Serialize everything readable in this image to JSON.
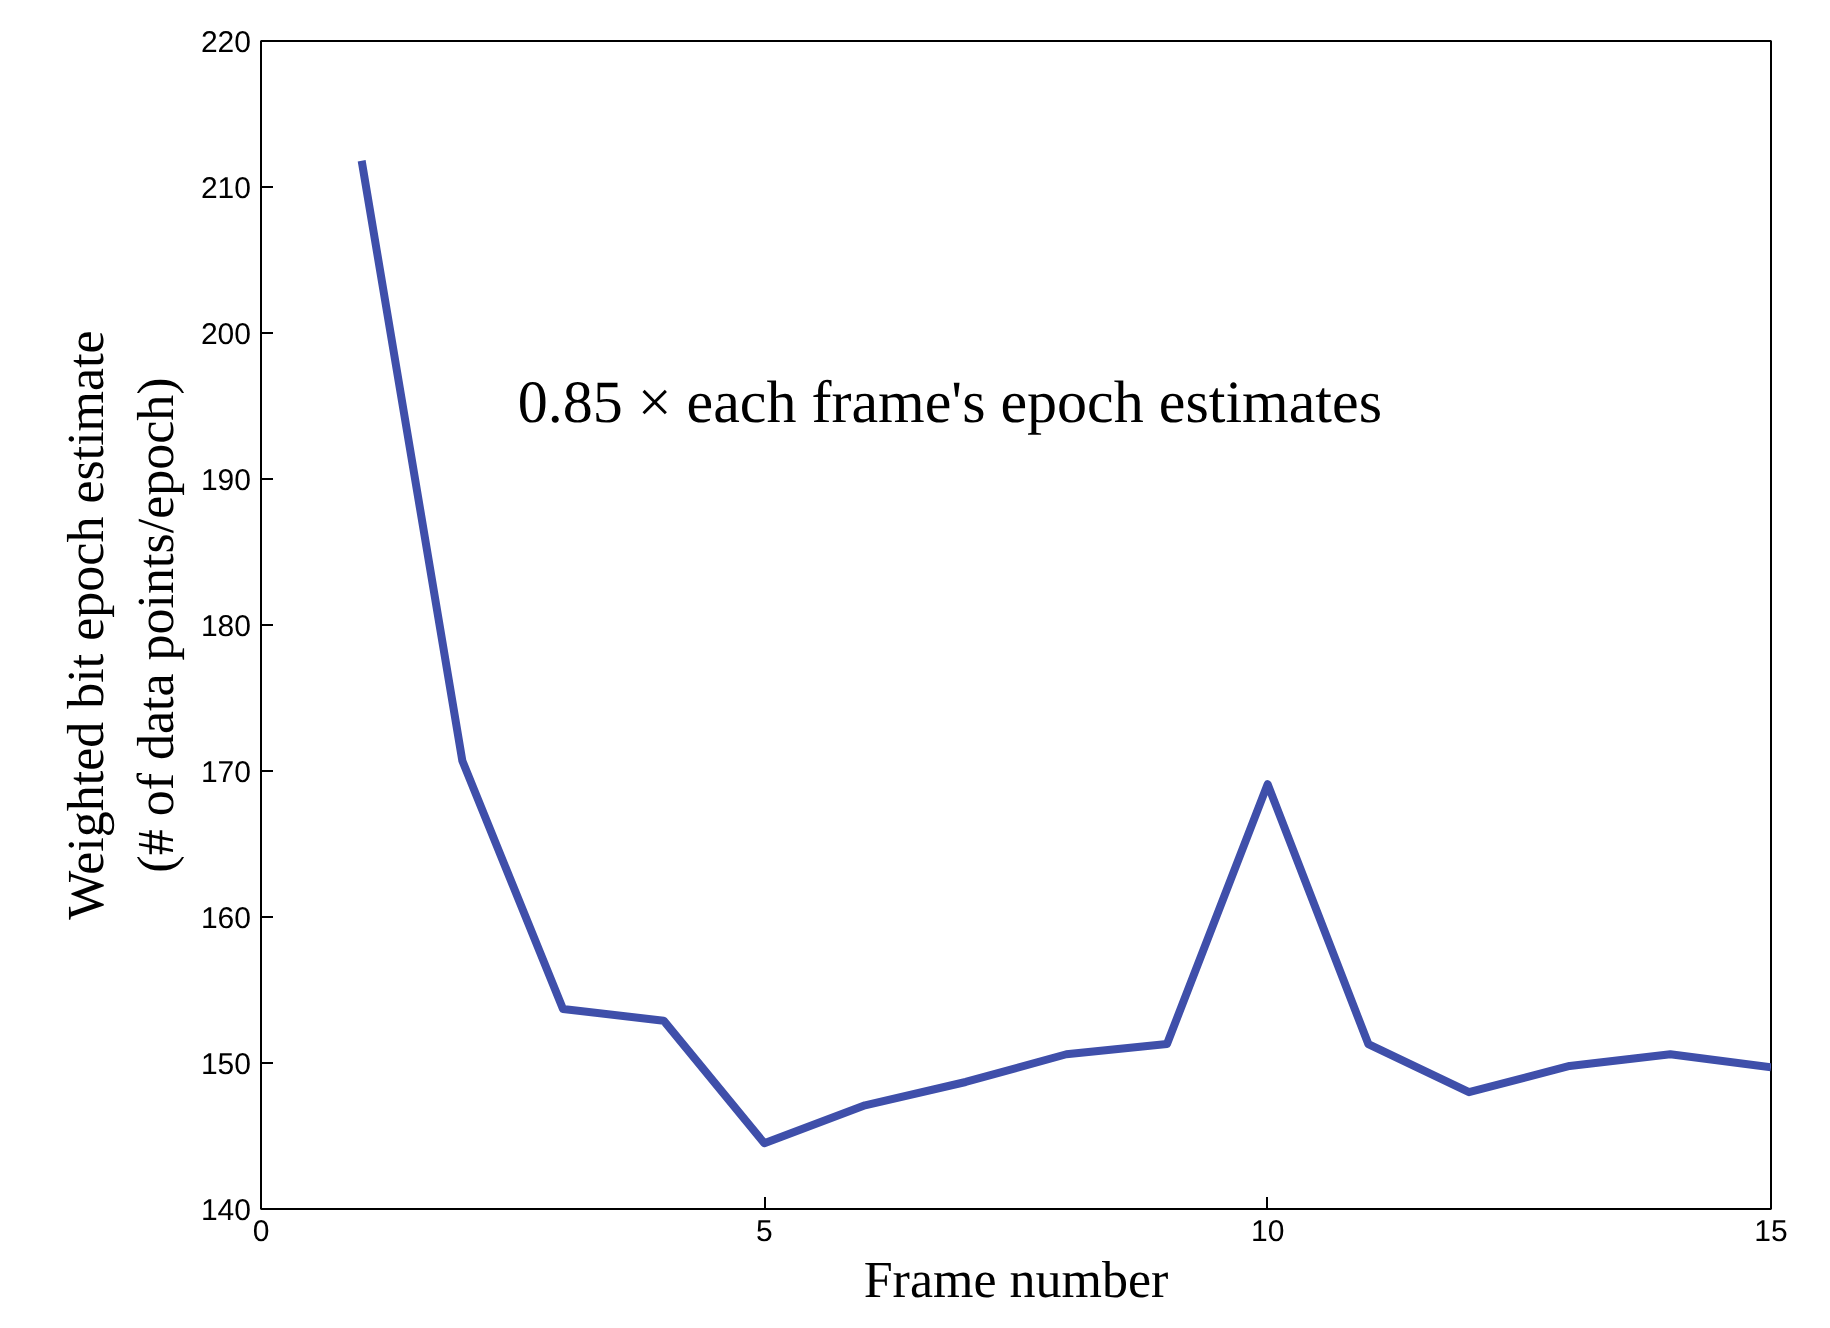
{
  "chart_data": {
    "type": "line",
    "xlabel": "Frame number",
    "ylabel": "Weighted bit epoch estimate\n(# of data points/epoch)",
    "annotations": [
      "0.85 × each frame's epoch estimates"
    ],
    "x": [
      1,
      2,
      3,
      4,
      5,
      6,
      7,
      8,
      9,
      10,
      11,
      12,
      13,
      14,
      15
    ],
    "series": [
      {
        "color": "#3f4faa",
        "values": [
          211.8,
          170.7,
          153.7,
          152.9,
          144.5,
          147.1,
          148.7,
          150.6,
          151.3,
          169.1,
          151.3,
          148.0,
          149.8,
          150.6,
          149.7
        ]
      }
    ],
    "xlim": [
      0,
      15
    ],
    "ylim": [
      140,
      220
    ],
    "xticks": [
      0,
      5,
      10,
      15
    ],
    "yticks": [
      140,
      150,
      160,
      170,
      180,
      190,
      200,
      210,
      220
    ],
    "grid": false,
    "marker": "none",
    "line_style": "solid"
  }
}
